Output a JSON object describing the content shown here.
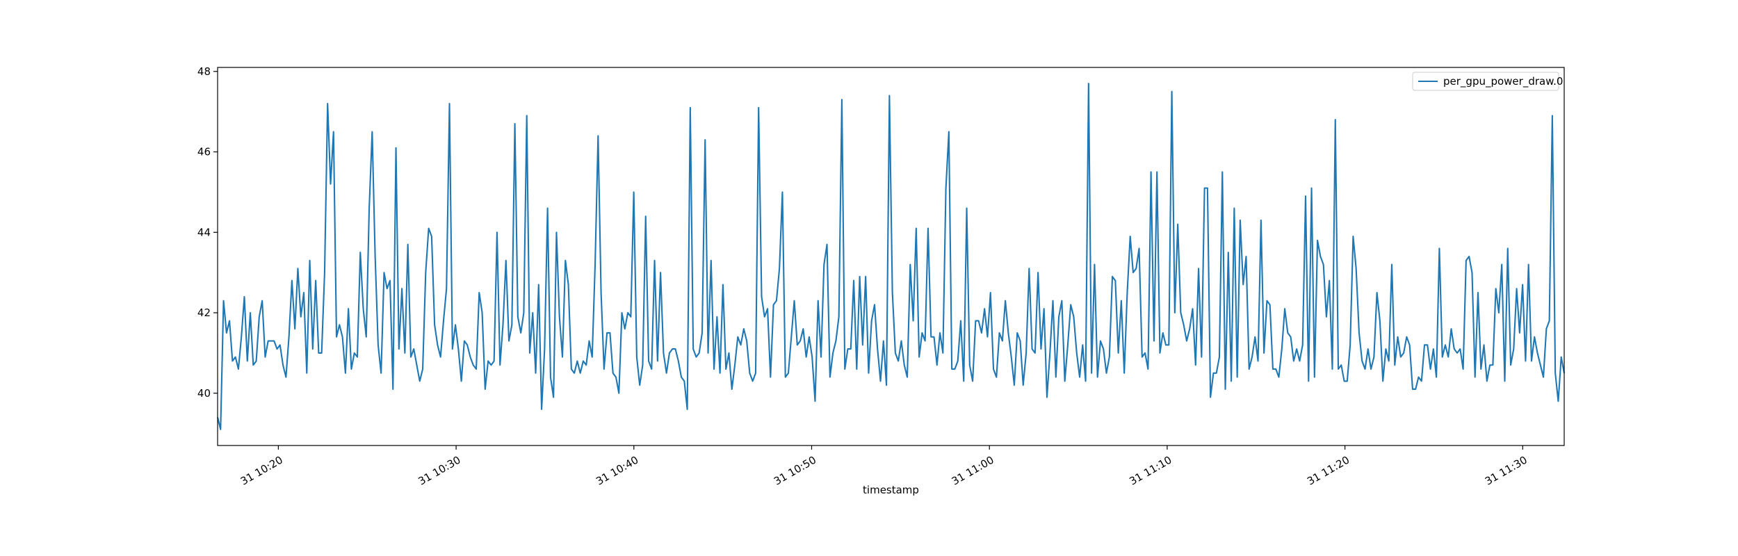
{
  "chart_data": {
    "type": "line",
    "title": "",
    "xlabel": "timestamp",
    "ylabel": "",
    "x_range": [
      "31 10:16:35",
      "31 11:32:20"
    ],
    "ylim": [
      38.7,
      48.1
    ],
    "x_ticks": [
      "31 10:20",
      "31 10:30",
      "31 10:40",
      "31 10:50",
      "31 11:00",
      "31 11:10",
      "31 11:20",
      "31 11:30"
    ],
    "y_ticks": [
      "40",
      "42",
      "44",
      "46",
      "48"
    ],
    "legend": {
      "position": "top-right",
      "entries": [
        "per_gpu_power_draw.0"
      ]
    },
    "grid": false,
    "series_color": "#1f77b4",
    "series": [
      {
        "name": "per_gpu_power_draw.0",
        "x_start": "31 10:16:35",
        "x_end": "31 11:32:20",
        "values": [
          39.4,
          39.1,
          42.3,
          41.5,
          41.8,
          40.8,
          40.9,
          40.6,
          41.4,
          42.4,
          40.8,
          42.0,
          40.7,
          40.8,
          41.9,
          42.3,
          40.9,
          41.3,
          41.3,
          41.3,
          41.1,
          41.2,
          40.7,
          40.4,
          41.4,
          42.8,
          41.6,
          43.1,
          41.9,
          42.5,
          40.5,
          43.3,
          41.1,
          42.8,
          41.0,
          41.0,
          43.0,
          47.2,
          45.2,
          46.5,
          41.4,
          41.7,
          41.4,
          40.5,
          42.1,
          40.6,
          41.0,
          40.9,
          43.5,
          42.1,
          41.4,
          44.6,
          46.5,
          43.4,
          41.2,
          40.5,
          43.0,
          42.6,
          42.8,
          40.1,
          46.1,
          41.1,
          42.6,
          41.0,
          43.7,
          40.9,
          41.1,
          40.7,
          40.3,
          40.6,
          43.0,
          44.1,
          43.9,
          41.7,
          41.2,
          40.9,
          41.8,
          42.6,
          47.2,
          41.1,
          41.7,
          41.1,
          40.3,
          41.3,
          41.2,
          40.9,
          40.7,
          40.6,
          42.5,
          42.0,
          40.1,
          40.8,
          40.7,
          40.8,
          44.0,
          40.7,
          41.7,
          43.3,
          41.3,
          41.7,
          46.7,
          41.9,
          41.5,
          42.0,
          46.9,
          41.0,
          42.0,
          40.5,
          42.7,
          39.6,
          41.1,
          44.6,
          40.4,
          39.9,
          44.0,
          41.9,
          40.9,
          43.3,
          42.7,
          40.6,
          40.5,
          40.8,
          40.5,
          40.8,
          40.7,
          41.3,
          40.9,
          43.2,
          46.4,
          42.5,
          40.6,
          41.5,
          41.5,
          40.5,
          40.4,
          40.0,
          42.0,
          41.6,
          42.0,
          41.9,
          45.0,
          40.9,
          40.2,
          40.7,
          44.4,
          40.8,
          40.6,
          43.3,
          40.8,
          43.0,
          41.0,
          40.5,
          41.0,
          41.1,
          41.1,
          40.8,
          40.4,
          40.3,
          39.6,
          47.1,
          41.1,
          40.9,
          41.0,
          41.5,
          46.3,
          41.0,
          43.3,
          40.6,
          41.9,
          40.5,
          42.7,
          40.6,
          41.0,
          40.1,
          40.7,
          41.4,
          41.2,
          41.6,
          41.3,
          40.5,
          40.3,
          40.5,
          47.1,
          42.4,
          41.9,
          42.1,
          40.4,
          42.2,
          42.3,
          43.1,
          45.0,
          40.4,
          40.5,
          41.4,
          42.3,
          41.2,
          41.3,
          41.6,
          40.9,
          41.4,
          40.9,
          39.8,
          42.3,
          40.9,
          43.2,
          43.7,
          40.4,
          41.0,
          41.3,
          41.9,
          47.3,
          40.6,
          41.1,
          41.1,
          42.8,
          40.6,
          42.9,
          41.2,
          42.9,
          40.5,
          41.8,
          42.2,
          41.1,
          40.3,
          41.3,
          40.2,
          47.4,
          42.5,
          41.0,
          40.8,
          41.3,
          40.7,
          40.4,
          43.2,
          41.8,
          44.1,
          40.9,
          41.5,
          41.3,
          44.1,
          41.4,
          41.4,
          40.7,
          41.5,
          41.0,
          45.1,
          46.5,
          40.6,
          40.6,
          40.8,
          41.8,
          40.3,
          44.6,
          40.7,
          40.3,
          41.8,
          41.8,
          41.5,
          42.1,
          41.4,
          42.5,
          40.6,
          40.4,
          41.5,
          41.3,
          42.3,
          41.5,
          40.9,
          40.2,
          41.5,
          41.3,
          40.2,
          41.0,
          43.1,
          41.1,
          41.0,
          43.0,
          41.1,
          42.1,
          39.9,
          41.0,
          42.3,
          40.4,
          41.9,
          42.3,
          40.3,
          41.2,
          42.2,
          41.9,
          41.0,
          40.4,
          41.2,
          40.3,
          47.7,
          40.5,
          43.2,
          40.4,
          41.3,
          41.1,
          40.5,
          40.9,
          42.9,
          42.8,
          41.0,
          42.3,
          40.5,
          42.5,
          43.9,
          43.0,
          43.1,
          43.6,
          40.9,
          41.0,
          40.6,
          45.5,
          41.3,
          45.5,
          41.0,
          41.5,
          41.2,
          41.2,
          47.5,
          42.0,
          44.2,
          42.0,
          41.7,
          41.3,
          41.6,
          42.1,
          40.7,
          43.1,
          40.9,
          45.1,
          45.1,
          39.9,
          40.5,
          40.5,
          40.9,
          45.5,
          40.1,
          43.5,
          40.3,
          44.6,
          40.4,
          44.3,
          42.7,
          43.4,
          40.6,
          40.9,
          41.4,
          40.8,
          44.3,
          41.0,
          42.3,
          42.2,
          40.6,
          40.6,
          40.4,
          41.1,
          42.1,
          41.5,
          41.4,
          40.8,
          41.1,
          40.8,
          41.2,
          44.9,
          40.3,
          45.1,
          40.4,
          43.8,
          43.4,
          43.2,
          41.9,
          42.8,
          40.6,
          46.8,
          40.6,
          40.7,
          40.3,
          40.3,
          41.2,
          43.9,
          43.1,
          41.5,
          40.8,
          40.6,
          41.1,
          40.6,
          40.9,
          42.5,
          41.8,
          40.3,
          41.1,
          40.8,
          43.2,
          40.7,
          41.4,
          40.9,
          41.0,
          41.4,
          41.2,
          40.1,
          40.1,
          40.4,
          40.3,
          41.2,
          41.2,
          40.6,
          41.1,
          40.4,
          43.6,
          40.9,
          41.2,
          40.9,
          41.6,
          41.1,
          41.0,
          41.1,
          40.6,
          43.3,
          43.4,
          43.0,
          40.4,
          42.5,
          40.6,
          41.2,
          40.3,
          40.7,
          40.7,
          42.6,
          42.0,
          43.2,
          40.3,
          43.6,
          40.7,
          41.1,
          42.6,
          41.5,
          42.7,
          40.8,
          43.2,
          40.8,
          41.4,
          41.0,
          40.7,
          40.4,
          41.6,
          41.8,
          46.9,
          40.5,
          39.8,
          40.9,
          40.5
        ]
      }
    ]
  }
}
